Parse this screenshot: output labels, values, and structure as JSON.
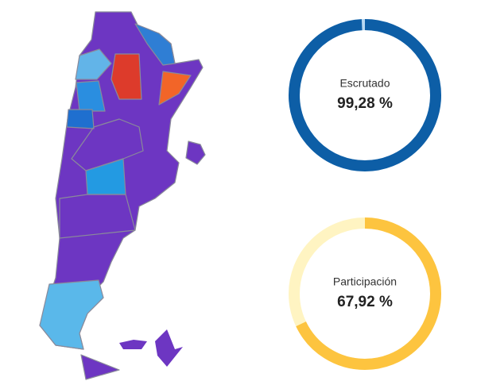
{
  "gauges": [
    {
      "label": "Escrutado",
      "value": 99.28,
      "value_label": "99,28 %",
      "color": "#0d5ea6",
      "track_color": "#b8d8f2"
    },
    {
      "label": "Participación",
      "value": 67.92,
      "value_label": "67,92 %",
      "color": "#fdc43f",
      "track_color": "#fff4c2"
    }
  ]
}
